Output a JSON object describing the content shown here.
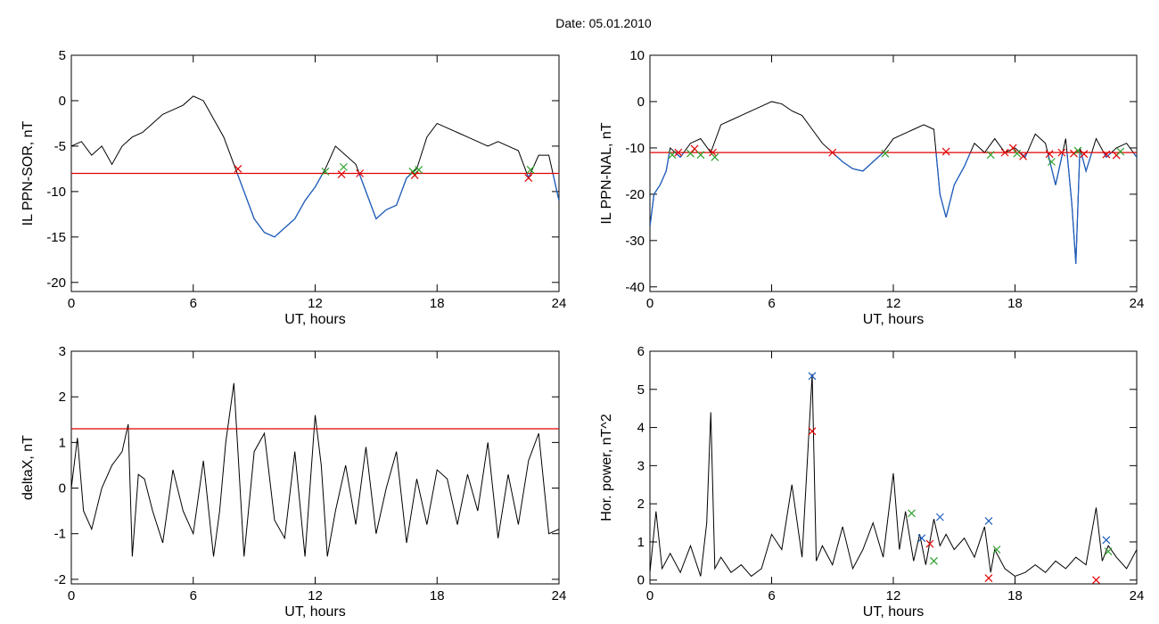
{
  "title": "Date:  05.01.2010",
  "chart_data": [
    {
      "id": "ppn-sor",
      "type": "line",
      "xlabel": "UT, hours",
      "ylabel": "IL PPN-SOR, nT",
      "xlim": [
        0,
        24
      ],
      "ylim": [
        -21,
        5
      ],
      "xticks": [
        0,
        6,
        12,
        18,
        24
      ],
      "yticks": [
        5,
        0,
        -5,
        -10,
        -15,
        -20
      ],
      "threshold": -8,
      "threshold_color": "#e00000",
      "line_color": "#000000",
      "below_color": "#1f5fbf",
      "series": [
        {
          "x": [
            0,
            0.5,
            1,
            1.5,
            2,
            2.5,
            3,
            3.5,
            4,
            4.5,
            5,
            5.5,
            6,
            6.5,
            7,
            7.5,
            8,
            8.5,
            9,
            9.5,
            10,
            10.5,
            11,
            11.5,
            12,
            12.5,
            13,
            13.5,
            14,
            14.5,
            15,
            15.5,
            16,
            16.5,
            17,
            17.5,
            18,
            18.5,
            19,
            19.5,
            20,
            20.5,
            21,
            21.5,
            22,
            22.5,
            23,
            23.5,
            24
          ],
          "y": [
            -5,
            -4.5,
            -6,
            -5,
            -7,
            -5,
            -4,
            -3.5,
            -2.5,
            -1.5,
            -1,
            -0.5,
            0.5,
            0,
            -2,
            -4,
            -7,
            -10,
            -13,
            -14.5,
            -15,
            -14,
            -13,
            -11,
            -9.5,
            -7.5,
            -5,
            -6,
            -7,
            -10,
            -13,
            -12,
            -11.5,
            -8.5,
            -7.5,
            -4,
            -2.5,
            -3,
            -3.5,
            -4,
            -4.5,
            -5,
            -4.5,
            -5,
            -5.5,
            -8.5,
            -6,
            -6,
            -11
          ]
        }
      ],
      "markers": [
        {
          "x": 8.2,
          "y": -7.5,
          "color": "#e00000"
        },
        {
          "x": 12.5,
          "y": -7.8,
          "color": "#2ca02c"
        },
        {
          "x": 13.3,
          "y": -8.1,
          "color": "#e00000"
        },
        {
          "x": 13.4,
          "y": -7.3,
          "color": "#2ca02c"
        },
        {
          "x": 14.2,
          "y": -8.0,
          "color": "#e00000"
        },
        {
          "x": 16.8,
          "y": -7.8,
          "color": "#2ca02c"
        },
        {
          "x": 17.1,
          "y": -7.6,
          "color": "#2ca02c"
        },
        {
          "x": 16.9,
          "y": -8.2,
          "color": "#e00000"
        },
        {
          "x": 22.5,
          "y": -8.5,
          "color": "#e00000"
        },
        {
          "x": 22.6,
          "y": -7.6,
          "color": "#2ca02c"
        }
      ]
    },
    {
      "id": "ppn-nal",
      "type": "line",
      "xlabel": "UT, hours",
      "ylabel": "IL PPN-NAL, nT",
      "xlim": [
        0,
        24
      ],
      "ylim": [
        -41,
        10
      ],
      "xticks": [
        0,
        6,
        12,
        18,
        24
      ],
      "yticks": [
        10,
        0,
        -10,
        -20,
        -30,
        -40
      ],
      "threshold": -11,
      "threshold_color": "#e00000",
      "line_color": "#000000",
      "below_color": "#1f5fbf",
      "series": [
        {
          "x": [
            0,
            0.2,
            0.5,
            0.8,
            1,
            1.5,
            2,
            2.5,
            3,
            3.5,
            4,
            4.5,
            5,
            5.5,
            6,
            6.5,
            7,
            7.5,
            8,
            8.5,
            9,
            9.5,
            10,
            10.5,
            11,
            11.5,
            12,
            12.5,
            13,
            13.5,
            14,
            14.3,
            14.6,
            15,
            15.5,
            16,
            16.5,
            17,
            17.5,
            18,
            18.5,
            19,
            19.5,
            20,
            20.5,
            20.8,
            21,
            21.2,
            21.5,
            22,
            22.5,
            23,
            23.5,
            24
          ],
          "y": [
            -27,
            -20,
            -18,
            -15,
            -10,
            -12,
            -9,
            -8,
            -11,
            -5,
            -4,
            -3,
            -2,
            -1,
            0,
            -0.5,
            -2,
            -3,
            -6,
            -9,
            -11,
            -13,
            -14.5,
            -15,
            -13,
            -11,
            -8,
            -7,
            -6,
            -5,
            -6,
            -20,
            -25,
            -18,
            -14,
            -9,
            -11,
            -8,
            -11,
            -10,
            -12,
            -7,
            -9,
            -18,
            -8,
            -22,
            -35,
            -10,
            -15,
            -8,
            -12,
            -10,
            -9,
            -12
          ]
        }
      ],
      "markers": [
        {
          "x": 1.1,
          "y": -11.5,
          "color": "#2ca02c"
        },
        {
          "x": 1.4,
          "y": -11.0,
          "color": "#e00000"
        },
        {
          "x": 2.0,
          "y": -11.2,
          "color": "#2ca02c"
        },
        {
          "x": 2.2,
          "y": -10.2,
          "color": "#e00000"
        },
        {
          "x": 2.5,
          "y": -11.5,
          "color": "#2ca02c"
        },
        {
          "x": 3.1,
          "y": -11.0,
          "color": "#e00000"
        },
        {
          "x": 3.2,
          "y": -12.0,
          "color": "#2ca02c"
        },
        {
          "x": 9.0,
          "y": -11.0,
          "color": "#e00000"
        },
        {
          "x": 11.6,
          "y": -11.2,
          "color": "#2ca02c"
        },
        {
          "x": 14.6,
          "y": -10.8,
          "color": "#e00000"
        },
        {
          "x": 16.8,
          "y": -11.5,
          "color": "#2ca02c"
        },
        {
          "x": 17.5,
          "y": -11.0,
          "color": "#e00000"
        },
        {
          "x": 17.9,
          "y": -10.0,
          "color": "#e00000"
        },
        {
          "x": 18.1,
          "y": -11.2,
          "color": "#2ca02c"
        },
        {
          "x": 18.4,
          "y": -11.8,
          "color": "#e00000"
        },
        {
          "x": 19.7,
          "y": -11.3,
          "color": "#e00000"
        },
        {
          "x": 19.8,
          "y": -13.0,
          "color": "#2ca02c"
        },
        {
          "x": 20.3,
          "y": -11.0,
          "color": "#e00000"
        },
        {
          "x": 20.9,
          "y": -11.2,
          "color": "#e00000"
        },
        {
          "x": 21.1,
          "y": -10.6,
          "color": "#2ca02c"
        },
        {
          "x": 21.4,
          "y": -11.3,
          "color": "#e00000"
        },
        {
          "x": 22.5,
          "y": -11.4,
          "color": "#e00000"
        },
        {
          "x": 23.0,
          "y": -11.6,
          "color": "#e00000"
        },
        {
          "x": 23.2,
          "y": -10.8,
          "color": "#2ca02c"
        }
      ]
    },
    {
      "id": "deltax",
      "type": "line",
      "xlabel": "UT, hours",
      "ylabel": "deltaX, nT",
      "xlim": [
        0,
        24
      ],
      "ylim": [
        -2.1,
        3
      ],
      "xticks": [
        0,
        6,
        12,
        18,
        24
      ],
      "yticks": [
        3,
        2,
        1,
        0,
        -1,
        -2
      ],
      "threshold": 1.3,
      "threshold_color": "#e00000",
      "line_color": "#000000",
      "series": [
        {
          "x": [
            0,
            0.3,
            0.6,
            1,
            1.5,
            2,
            2.5,
            2.8,
            3,
            3.3,
            3.6,
            4,
            4.5,
            5,
            5.5,
            6,
            6.5,
            7,
            7.3,
            7.6,
            8,
            8.2,
            8.5,
            9,
            9.5,
            10,
            10.5,
            11,
            11.5,
            12,
            12.3,
            12.6,
            13,
            13.5,
            14,
            14.5,
            15,
            15.5,
            16,
            16.5,
            17,
            17.5,
            18,
            18.5,
            19,
            19.5,
            20,
            20.5,
            21,
            21.5,
            22,
            22.5,
            23,
            23.5,
            24
          ],
          "y": [
            0,
            1.1,
            -0.5,
            -0.9,
            0,
            0.5,
            0.8,
            1.4,
            -1.5,
            0.3,
            0.2,
            -0.5,
            -1.2,
            0.4,
            -0.5,
            -1,
            0.6,
            -1.5,
            -0.5,
            1,
            2.3,
            0.8,
            -1.5,
            0.8,
            1.2,
            -0.7,
            -1.1,
            0.8,
            -1.5,
            1.6,
            0.5,
            -1.5,
            -0.5,
            0.5,
            -0.8,
            0.9,
            -1,
            0,
            0.8,
            -1.2,
            0.2,
            -0.8,
            0.4,
            0.2,
            -0.8,
            0.3,
            -0.5,
            1,
            -1.1,
            0.3,
            -0.8,
            0.6,
            1.2,
            -1,
            -0.9
          ]
        }
      ],
      "markers": []
    },
    {
      "id": "hor-power",
      "type": "line",
      "xlabel": "UT, hours",
      "ylabel": "Hor. power, nT^2",
      "xlim": [
        0,
        24
      ],
      "ylim": [
        -0.1,
        6
      ],
      "xticks": [
        0,
        6,
        12,
        18,
        24
      ],
      "yticks": [
        6,
        5,
        4,
        3,
        2,
        1,
        0
      ],
      "line_color": "#000000",
      "series": [
        {
          "x": [
            0,
            0.3,
            0.6,
            1,
            1.5,
            2,
            2.5,
            2.8,
            3,
            3.2,
            3.5,
            4,
            4.5,
            5,
            5.5,
            6,
            6.5,
            7,
            7.5,
            7.8,
            8,
            8.2,
            8.5,
            9,
            9.5,
            10,
            10.5,
            11,
            11.5,
            12,
            12.3,
            12.6,
            13,
            13.3,
            13.6,
            14,
            14.3,
            14.6,
            15,
            15.5,
            16,
            16.5,
            16.8,
            17,
            17.5,
            18,
            18.5,
            19,
            19.5,
            20,
            20.5,
            21,
            21.5,
            22,
            22.3,
            22.6,
            23,
            23.5,
            24
          ],
          "y": [
            0.2,
            1.8,
            0.3,
            0.7,
            0.2,
            0.9,
            0.1,
            1.5,
            4.4,
            0.3,
            0.6,
            0.2,
            0.4,
            0.1,
            0.3,
            1.2,
            0.8,
            2.5,
            0.6,
            3.5,
            5.4,
            0.5,
            0.9,
            0.4,
            1.4,
            0.3,
            0.8,
            1.5,
            0.6,
            2.8,
            0.8,
            1.8,
            0.5,
            1.2,
            0.4,
            1.6,
            0.9,
            1.2,
            0.8,
            1.1,
            0.6,
            1.4,
            0.2,
            0.8,
            0.3,
            0.1,
            0.2,
            0.4,
            0.2,
            0.5,
            0.3,
            0.6,
            0.4,
            1.9,
            0.5,
            0.9,
            0.6,
            0.3,
            0.8
          ]
        }
      ],
      "markers": [
        {
          "x": 8.0,
          "y": 5.35,
          "color": "#1f5fbf"
        },
        {
          "x": 8.0,
          "y": 3.9,
          "color": "#e00000"
        },
        {
          "x": 12.9,
          "y": 1.75,
          "color": "#2ca02c"
        },
        {
          "x": 13.4,
          "y": 1.1,
          "color": "#1f5fbf"
        },
        {
          "x": 13.8,
          "y": 0.95,
          "color": "#e00000"
        },
        {
          "x": 14.3,
          "y": 1.65,
          "color": "#1f5fbf"
        },
        {
          "x": 14.0,
          "y": 0.5,
          "color": "#2ca02c"
        },
        {
          "x": 16.7,
          "y": 1.55,
          "color": "#1f5fbf"
        },
        {
          "x": 16.7,
          "y": 0.05,
          "color": "#e00000"
        },
        {
          "x": 17.1,
          "y": 0.8,
          "color": "#2ca02c"
        },
        {
          "x": 22.5,
          "y": 1.05,
          "color": "#1f5fbf"
        },
        {
          "x": 22.6,
          "y": 0.75,
          "color": "#2ca02c"
        },
        {
          "x": 22.0,
          "y": 0.0,
          "color": "#e00000"
        }
      ]
    }
  ]
}
